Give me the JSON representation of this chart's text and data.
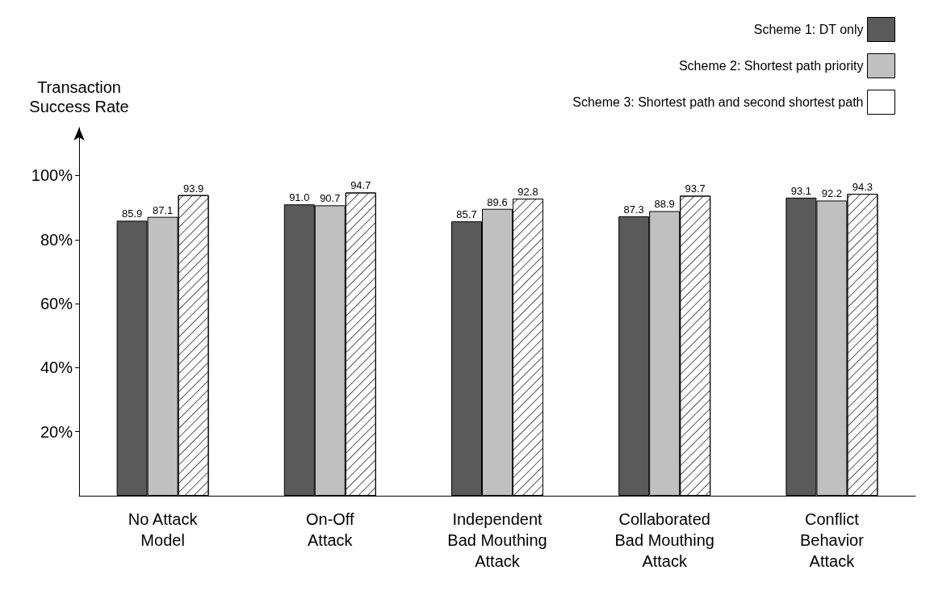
{
  "chart_data": {
    "type": "bar",
    "ylabel": "Transaction\nSuccess Rate",
    "categories": [
      "No Attack\nModel",
      "On-Off\nAttack",
      "Independent\nBad Mouthing\nAttack",
      "Collaborated\nBad Mouthing\nAttack",
      "Conflict\nBehavior\nAttack"
    ],
    "series": [
      {
        "name": "Scheme 1: DT only",
        "color": "#5a5a5a",
        "values": [
          85.9,
          91.0,
          85.7,
          87.3,
          93.1
        ],
        "value_labels": [
          "85.9",
          "91.0",
          "85.7",
          "87.3",
          "93.1"
        ]
      },
      {
        "name": "Scheme 2: Shortest path priority",
        "color": "#c0c0c0",
        "values": [
          87.1,
          90.7,
          89.6,
          88.9,
          92.2
        ],
        "value_labels": [
          "87.1",
          "90.7",
          "89.6",
          "88.9",
          "92.2"
        ]
      },
      {
        "name": "Scheme 3: Shortest path and second shortest path",
        "color": "#ffffff",
        "values": [
          93.9,
          94.7,
          92.8,
          93.7,
          94.3
        ],
        "value_labels": [
          "93.9",
          "94.7",
          "92.8",
          "93.7",
          "94.3"
        ]
      }
    ],
    "ylim": [
      0,
      115
    ],
    "yticks": [
      {
        "value": 20,
        "label": "20%"
      },
      {
        "value": 40,
        "label": "40%"
      },
      {
        "value": 60,
        "label": "60%"
      },
      {
        "value": 80,
        "label": "80%"
      },
      {
        "value": 100,
        "label": "100%"
      }
    ],
    "legend": "top right",
    "grid": false
  }
}
